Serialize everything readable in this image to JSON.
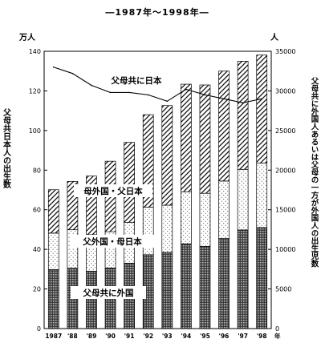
{
  "chart_data": {
    "type": "bar",
    "title": "―1987年～1998年―",
    "categories": [
      "1987",
      "'88",
      "'89",
      "'90",
      "'91",
      "'92",
      "'93",
      "'94",
      "'95",
      "'96",
      "'97",
      "'98"
    ],
    "x_axis_suffix": "年",
    "series": [
      {
        "name": "父母共に外国",
        "values": [
          29.8,
          30.5,
          29.0,
          30.6,
          33.0,
          37.3,
          38.5,
          42.8,
          41.5,
          45.5,
          49.8,
          51.0
        ]
      },
      {
        "name": "父外国・母日本",
        "values": [
          18.4,
          19.4,
          18.4,
          18.3,
          20.6,
          24.0,
          23.8,
          26.3,
          26.8,
          29.0,
          30.6,
          32.5
        ]
      },
      {
        "name": "母外国・父日本",
        "values": [
          21.9,
          24.4,
          29.6,
          35.6,
          40.4,
          46.7,
          50.3,
          54.3,
          54.7,
          55.5,
          54.6,
          54.6
        ]
      }
    ],
    "line_series": {
      "name": "父母共に日本",
      "values": [
        33000,
        32200,
        30700,
        29800,
        29800,
        29500,
        28700,
        30200,
        29500,
        29000,
        28500,
        29000
      ]
    },
    "left_axis": {
      "unit": "万人",
      "label": "父母共日本人の出生数",
      "ylim": [
        0,
        140
      ],
      "ticks": [
        0,
        20,
        40,
        60,
        80,
        100,
        120,
        140
      ]
    },
    "right_axis": {
      "unit": "人",
      "label": "父母共に外国人あるいは父母の一方が外国人の出生児数",
      "ylim": [
        0,
        35000
      ],
      "ticks": [
        0,
        5000,
        10000,
        15000,
        20000,
        25000,
        30000,
        35000
      ]
    },
    "grid": false
  }
}
